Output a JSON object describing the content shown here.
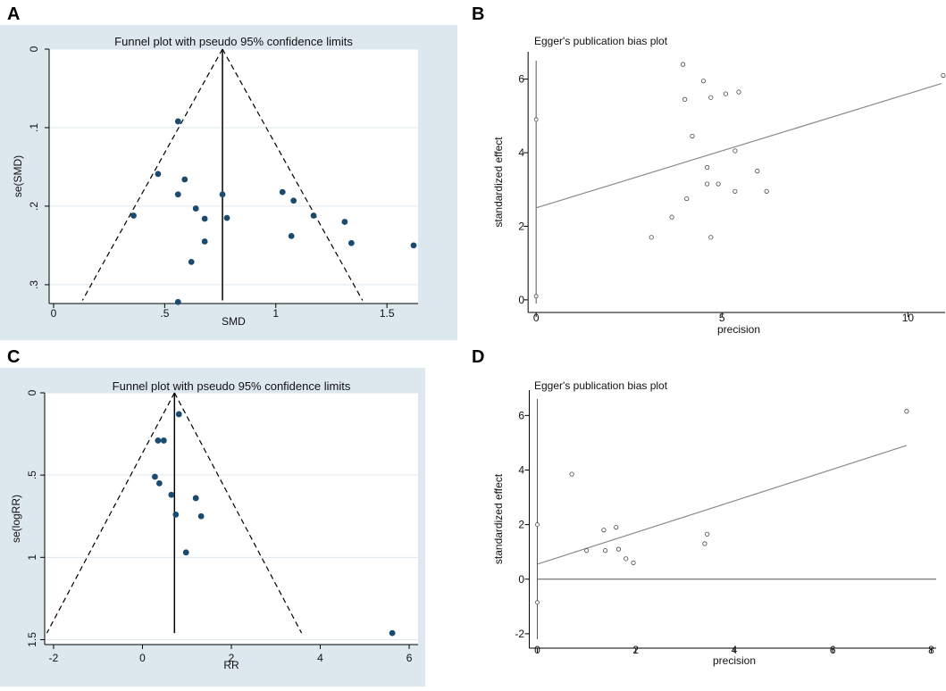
{
  "figure_panels": [
    "A",
    "B",
    "C",
    "D"
  ],
  "chart_data": [
    {
      "panel": "A",
      "type": "scatter",
      "subtype": "funnel",
      "title": "Funnel plot with pseudo 95% confidence limits",
      "xlabel": "SMD",
      "ylabel": "se(SMD)",
      "xlim": [
        -0.02,
        1.64
      ],
      "ylim": [
        0,
        0.324
      ],
      "y_reversed": true,
      "xticks": [
        0,
        0.5,
        1,
        1.5
      ],
      "xtick_labels": [
        "0",
        ".5",
        "1",
        "1.5"
      ],
      "yticks": [
        0,
        0.1,
        0.2,
        0.3
      ],
      "ytick_labels": [
        "0",
        ".1",
        ".2",
        ".3"
      ],
      "pooled_estimate": 0.76,
      "ci_lines": {
        "apex": [
          0.76,
          0
        ],
        "left_base": [
          0.13,
          0.32
        ],
        "right_base": [
          1.39,
          0.32
        ]
      },
      "points": [
        {
          "x": 0.56,
          "y": 0.092
        },
        {
          "x": 0.47,
          "y": 0.159
        },
        {
          "x": 0.59,
          "y": 0.166
        },
        {
          "x": 0.56,
          "y": 0.185
        },
        {
          "x": 0.76,
          "y": 0.185
        },
        {
          "x": 1.03,
          "y": 0.182
        },
        {
          "x": 1.08,
          "y": 0.193
        },
        {
          "x": 0.64,
          "y": 0.203
        },
        {
          "x": 0.36,
          "y": 0.212
        },
        {
          "x": 0.68,
          "y": 0.216
        },
        {
          "x": 0.78,
          "y": 0.215
        },
        {
          "x": 1.17,
          "y": 0.212
        },
        {
          "x": 1.31,
          "y": 0.22
        },
        {
          "x": 1.07,
          "y": 0.238
        },
        {
          "x": 0.68,
          "y": 0.245
        },
        {
          "x": 1.34,
          "y": 0.247
        },
        {
          "x": 1.62,
          "y": 0.25
        },
        {
          "x": 0.62,
          "y": 0.271
        },
        {
          "x": 0.56,
          "y": 0.322
        }
      ]
    },
    {
      "panel": "B",
      "type": "scatter",
      "subtype": "egger",
      "title": "Egger's publication bias plot",
      "xlabel": "precision",
      "ylabel": "standardized effect",
      "xlim": [
        -0.1,
        11
      ],
      "ylim": [
        -0.1,
        6.5
      ],
      "xticks": [
        0,
        5,
        10
      ],
      "xtick_labels": [
        "0",
        "5",
        "10"
      ],
      "yticks": [
        0,
        2,
        4,
        6
      ],
      "ytick_labels": [
        "0",
        "2",
        "4",
        "6"
      ],
      "regression_line": {
        "intercept": 2.5,
        "slope": 0.31,
        "x_from": 0,
        "x_to": 10.9
      },
      "intercept_markers": [
        {
          "x": 0,
          "y": 4.9
        },
        {
          "x": 0,
          "y": 0.1
        }
      ],
      "points": [
        {
          "x": 3.95,
          "y": 6.4
        },
        {
          "x": 4.5,
          "y": 5.95
        },
        {
          "x": 5.1,
          "y": 5.6
        },
        {
          "x": 5.45,
          "y": 5.65
        },
        {
          "x": 4.0,
          "y": 5.45
        },
        {
          "x": 4.7,
          "y": 5.5
        },
        {
          "x": 4.2,
          "y": 4.45
        },
        {
          "x": 5.35,
          "y": 4.05
        },
        {
          "x": 4.6,
          "y": 3.6
        },
        {
          "x": 5.95,
          "y": 3.5
        },
        {
          "x": 4.6,
          "y": 3.15
        },
        {
          "x": 4.9,
          "y": 3.15
        },
        {
          "x": 5.35,
          "y": 2.95
        },
        {
          "x": 6.2,
          "y": 2.95
        },
        {
          "x": 4.05,
          "y": 2.75
        },
        {
          "x": 3.65,
          "y": 2.25
        },
        {
          "x": 3.1,
          "y": 1.7
        },
        {
          "x": 4.7,
          "y": 1.7
        },
        {
          "x": 10.95,
          "y": 6.1
        }
      ]
    },
    {
      "panel": "C",
      "type": "scatter",
      "subtype": "funnel",
      "title": "Funnel plot with pseudo 95% confidence limits",
      "xlabel": "RR",
      "ylabel": "se(logRR)",
      "xlim": [
        -2.2,
        6.2
      ],
      "ylim": [
        0,
        1.53
      ],
      "y_reversed": true,
      "xticks": [
        -2,
        0,
        2,
        4,
        6
      ],
      "xtick_labels": [
        "-2",
        "0",
        "2",
        "4",
        "6"
      ],
      "yticks": [
        0,
        0.5,
        1,
        1.5
      ],
      "ytick_labels": [
        "0",
        ".5",
        "1",
        "1.5"
      ],
      "pooled_estimate": 0.72,
      "ci_lines": {
        "apex": [
          0.72,
          0
        ],
        "left_base": [
          -2.15,
          1.46
        ],
        "right_base": [
          3.58,
          1.46
        ]
      },
      "points": [
        {
          "x": 0.82,
          "y": 0.13
        },
        {
          "x": 0.35,
          "y": 0.29
        },
        {
          "x": 0.48,
          "y": 0.29
        },
        {
          "x": 0.28,
          "y": 0.51
        },
        {
          "x": 0.38,
          "y": 0.55
        },
        {
          "x": 0.65,
          "y": 0.62
        },
        {
          "x": 1.2,
          "y": 0.64
        },
        {
          "x": 0.75,
          "y": 0.74
        },
        {
          "x": 1.32,
          "y": 0.75
        },
        {
          "x": 0.98,
          "y": 0.97
        },
        {
          "x": 5.62,
          "y": 1.46
        }
      ]
    },
    {
      "panel": "D",
      "type": "scatter",
      "subtype": "egger",
      "title": "Egger's publication bias plot",
      "xlabel": "precision",
      "ylabel": "standardized effect",
      "xlim": [
        -0.1,
        8.1
      ],
      "ylim": [
        -2.2,
        6.6
      ],
      "xticks": [
        0,
        2,
        4,
        6,
        8
      ],
      "xtick_labels": [
        "0",
        "2",
        "4",
        "6",
        "8"
      ],
      "yticks": [
        -2,
        0,
        2,
        4,
        6
      ],
      "ytick_labels": [
        "-2",
        "0",
        "2",
        "4",
        "6"
      ],
      "zero_line": 0,
      "regression_line": {
        "intercept": 0.55,
        "slope": 0.58,
        "x_from": 0,
        "x_to": 7.5
      },
      "intercept_markers": [
        {
          "x": 0,
          "y": 2.0
        },
        {
          "x": 0,
          "y": -0.85
        }
      ],
      "points": [
        {
          "x": 0.7,
          "y": 3.85
        },
        {
          "x": 1.0,
          "y": 1.05
        },
        {
          "x": 1.35,
          "y": 1.8
        },
        {
          "x": 1.38,
          "y": 1.05
        },
        {
          "x": 1.6,
          "y": 1.9
        },
        {
          "x": 1.65,
          "y": 1.1
        },
        {
          "x": 1.8,
          "y": 0.75
        },
        {
          "x": 1.95,
          "y": 0.6
        },
        {
          "x": 3.4,
          "y": 1.3
        },
        {
          "x": 3.45,
          "y": 1.65
        },
        {
          "x": 7.5,
          "y": 6.15
        }
      ]
    }
  ],
  "colors": {
    "panel_background": "#dde7ee",
    "plot_background": "#ffffff",
    "gridline": "#dde7ee",
    "funnel_marker": "#1a4a6e",
    "egger_marker": "#ffffff",
    "egger_line": "#8a8a8a",
    "axis": "#000000"
  }
}
